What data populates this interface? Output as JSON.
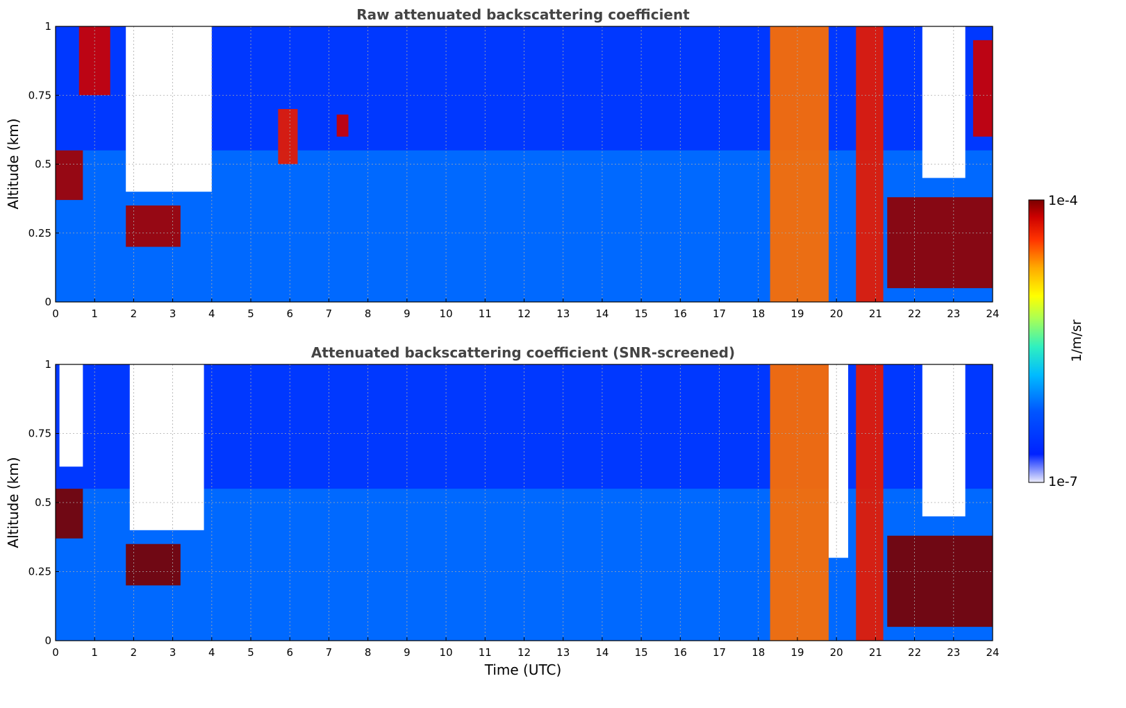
{
  "chart_data": [
    {
      "type": "heatmap",
      "title": "Raw attenuated backscattering coefficient",
      "ylabel": "Altitude (km)",
      "xlabel": "",
      "xlim": [
        0,
        24
      ],
      "ylim": [
        0,
        1
      ],
      "xticks": [
        "0",
        "1",
        "2",
        "3",
        "4",
        "5",
        "6",
        "7",
        "8",
        "9",
        "10",
        "11",
        "12",
        "13",
        "14",
        "15",
        "16",
        "17",
        "18",
        "19",
        "20",
        "21",
        "22",
        "23",
        "24"
      ],
      "yticks": [
        "0",
        "0.25",
        "0.5",
        "0.75",
        "1"
      ],
      "grid": true,
      "features": [
        {
          "time": [
            0.0,
            0.7
          ],
          "altitude": [
            0.37,
            0.55
          ],
          "level": 0.95
        },
        {
          "time": [
            0.6,
            1.4
          ],
          "altitude": [
            0.75,
            1.0
          ],
          "level": 0.9
        },
        {
          "time": [
            1.8,
            3.2
          ],
          "altitude": [
            0.2,
            0.35
          ],
          "level": 0.95
        },
        {
          "time": [
            5.7,
            6.2
          ],
          "altitude": [
            0.5,
            0.7
          ],
          "level": 0.85
        },
        {
          "time": [
            7.2,
            7.5
          ],
          "altitude": [
            0.6,
            0.68
          ],
          "level": 0.9
        },
        {
          "time": [
            18.3,
            19.8
          ],
          "altitude": [
            0.0,
            1.0
          ],
          "level": 0.75
        },
        {
          "time": [
            20.5,
            21.2
          ],
          "altitude": [
            0.0,
            1.0
          ],
          "level": 0.85
        },
        {
          "time": [
            21.3,
            24.0
          ],
          "altitude": [
            0.05,
            0.38
          ],
          "level": 0.97
        },
        {
          "time": [
            23.5,
            24.0
          ],
          "altitude": [
            0.6,
            0.95
          ],
          "level": 0.9
        }
      ],
      "clear_regions": [
        {
          "time": [
            1.8,
            4.0
          ],
          "altitude": [
            0.4,
            1.0
          ]
        },
        {
          "time": [
            22.2,
            23.3
          ],
          "altitude": [
            0.45,
            1.0
          ]
        }
      ]
    },
    {
      "type": "heatmap",
      "title": "Attenuated backscattering coefficient (SNR-screened)",
      "ylabel": "Altitude (km)",
      "xlabel": "Time (UTC)",
      "xlim": [
        0,
        24
      ],
      "ylim": [
        0,
        1
      ],
      "xticks": [
        "0",
        "1",
        "2",
        "3",
        "4",
        "5",
        "6",
        "7",
        "8",
        "9",
        "10",
        "11",
        "12",
        "13",
        "14",
        "15",
        "16",
        "17",
        "18",
        "19",
        "20",
        "21",
        "22",
        "23",
        "24"
      ],
      "yticks": [
        "0",
        "0.25",
        "0.5",
        "0.75",
        "1"
      ],
      "grid": true,
      "features": [
        {
          "time": [
            0.0,
            0.7
          ],
          "altitude": [
            0.37,
            0.55
          ],
          "level": 1.0
        },
        {
          "time": [
            1.8,
            3.2
          ],
          "altitude": [
            0.2,
            0.35
          ],
          "level": 1.0
        },
        {
          "time": [
            18.3,
            19.8
          ],
          "altitude": [
            0.0,
            1.0
          ],
          "level": 0.75
        },
        {
          "time": [
            20.5,
            21.2
          ],
          "altitude": [
            0.0,
            1.0
          ],
          "level": 0.85
        },
        {
          "time": [
            21.3,
            24.0
          ],
          "altitude": [
            0.05,
            0.38
          ],
          "level": 1.0
        }
      ],
      "clear_regions": [
        {
          "time": [
            0.1,
            0.7
          ],
          "altitude": [
            0.63,
            1.0
          ]
        },
        {
          "time": [
            1.9,
            3.8
          ],
          "altitude": [
            0.4,
            1.0
          ]
        },
        {
          "time": [
            19.8,
            20.3
          ],
          "altitude": [
            0.3,
            1.0
          ]
        },
        {
          "time": [
            22.2,
            23.3
          ],
          "altitude": [
            0.45,
            1.0
          ]
        }
      ]
    }
  ],
  "colorbar": {
    "label": "1/m/sr",
    "max_label": "1e-4",
    "min_label": "1e-7",
    "colormap": [
      "#ececfb",
      "#0022ff",
      "#0055ff",
      "#00bbff",
      "#2ff0c0",
      "#aaff55",
      "#ffff00",
      "#ffaa00",
      "#ff3300",
      "#cc0000",
      "#7a0000"
    ]
  }
}
